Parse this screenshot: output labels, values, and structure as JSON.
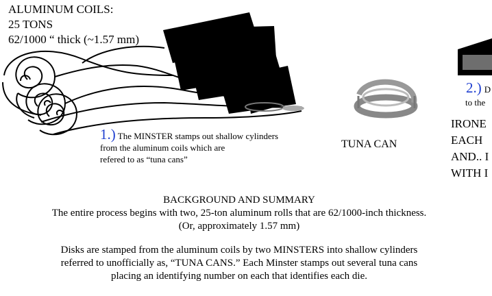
{
  "coils": {
    "title": "ALUMINUM COILS:",
    "weight": "25 TONS",
    "thickness": "62/1000 “ thick (~1.57 mm)"
  },
  "step1": {
    "number": "1.)",
    "line1": "The MINSTER stamps out shallow cylinders",
    "line2": "from the aluminum coils which are",
    "line3": "refered to as “tuna cans”"
  },
  "tuna_can": {
    "label": "TUNA CAN"
  },
  "step2": {
    "number": "2.)",
    "text_fragment": "D",
    "line2_fragment": "to the"
  },
  "ironed": {
    "line1": "IRONE",
    "line2": "EACH",
    "line3": "AND.. I",
    "line4": "WITH I"
  },
  "summary": {
    "heading": "BACKGROUND AND SUMMARY",
    "line1": "The entire process begins with two, 25-ton aluminum rolls that are 62/1000-inch thickness.",
    "line2": "(Or, approximately 1.57 mm)",
    "line3": "Disks are stamped from the aluminum coils by two MINSTERS into shallow cylinders",
    "line4": "referred to unofficially as, “TUNA CANS.” Each Minster stamps out several tuna cans",
    "line5": "placing an identifying number on each that identifies each die."
  }
}
